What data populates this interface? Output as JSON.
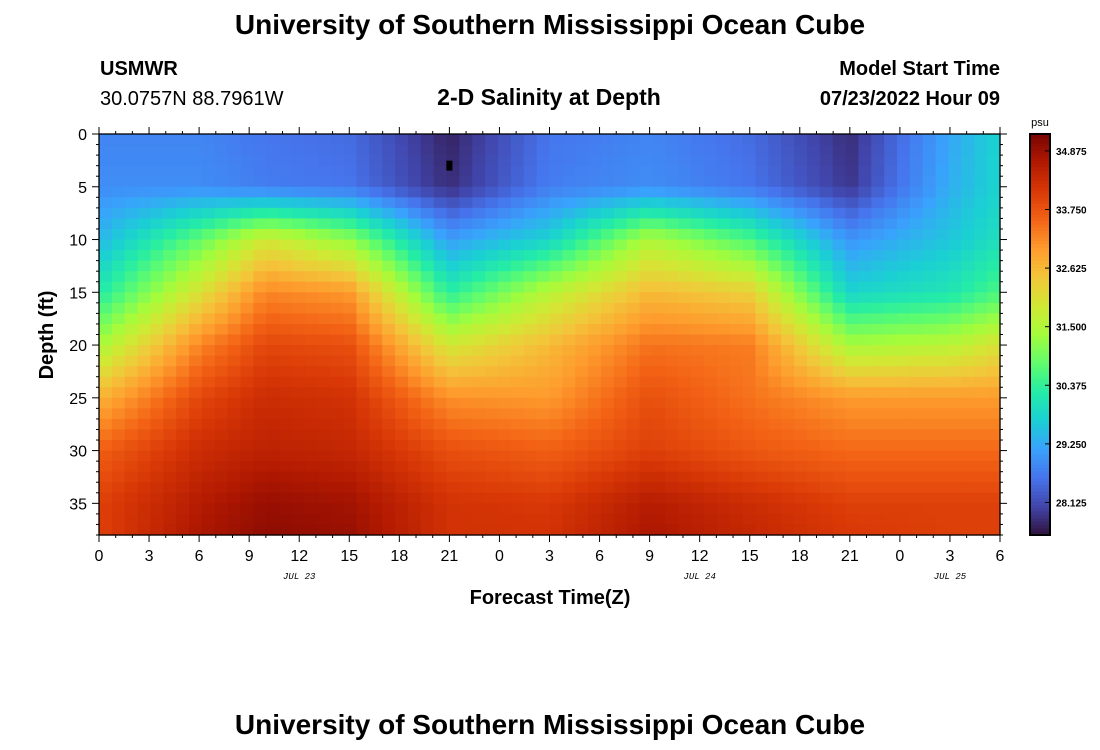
{
  "header": {
    "title": "University of Southern Mississippi Ocean Cube",
    "station": "USMWR",
    "coords": "30.0757N  88.7961W",
    "subtitle": "2-D Salinity at Depth",
    "model_label": "Model Start Time",
    "model_time": "07/23/2022 Hour 09"
  },
  "footer": {
    "title": "University of Southern Mississippi Ocean Cube"
  },
  "colors": {
    "background": "#ffffff",
    "marker": "#000000",
    "colormap": [
      "#30123b",
      "#4145ab",
      "#4675ed",
      "#39a2fc",
      "#1bcfd4",
      "#24eca6",
      "#61fc6c",
      "#a4fc3b",
      "#d1e834",
      "#f3c63a",
      "#fe9b2d",
      "#f36315",
      "#d93806",
      "#b11901",
      "#7a0403"
    ]
  },
  "chart_data": {
    "type": "heatmap",
    "variable": "Salinity",
    "units": "psu",
    "xlabel": "Forecast Time(Z)",
    "ylabel": "Depth (ft)",
    "x_hours_range": [
      0,
      54
    ],
    "x_tick_labels": [
      "0",
      "3",
      "6",
      "9",
      "12",
      "15",
      "18",
      "21",
      "0",
      "3",
      "6",
      "9",
      "12",
      "15",
      "18",
      "21",
      "0",
      "3",
      "6"
    ],
    "date_labels": [
      {
        "label": "JUL 23",
        "hour": 12
      },
      {
        "label": "JUL 24",
        "hour": 36
      },
      {
        "label": "JUL 25",
        "hour": 51
      }
    ],
    "ylim": [
      0,
      38
    ],
    "y_ticks": [
      0,
      5,
      10,
      15,
      20,
      25,
      30,
      35
    ],
    "color_range": [
      27.5,
      35.2
    ],
    "colorbar_ticks": [
      "34.875",
      "33.750",
      "32.625",
      "31.500",
      "30.375",
      "29.250",
      "28.125"
    ],
    "colorbar_tick_values": [
      34.875,
      33.75,
      32.625,
      31.5,
      30.375,
      29.25,
      28.125
    ],
    "grid_cells": {
      "columns": 70,
      "rows": 38
    },
    "control_points": {
      "hours": [
        0,
        6,
        10,
        15,
        21,
        27,
        33,
        39,
        45,
        51,
        54
      ],
      "depths": [
        0,
        5,
        10,
        15,
        20,
        25,
        30,
        35,
        38
      ],
      "salinity": [
        [
          28.8,
          28.8,
          28.6,
          28.5,
          27.7,
          28.6,
          28.8,
          28.5,
          27.8,
          29.2,
          29.8
        ],
        [
          28.9,
          28.9,
          28.7,
          28.6,
          27.8,
          28.7,
          28.9,
          28.6,
          27.9,
          29.3,
          29.8
        ],
        [
          29.4,
          30.8,
          31.9,
          31.2,
          29.1,
          29.8,
          31.5,
          30.6,
          29.0,
          29.6,
          30.0
        ],
        [
          30.2,
          32.0,
          33.2,
          33.0,
          30.3,
          31.6,
          32.6,
          32.3,
          29.8,
          30.1,
          30.6
        ],
        [
          31.4,
          33.2,
          33.9,
          33.8,
          31.9,
          32.6,
          33.4,
          33.3,
          31.4,
          31.6,
          32.0
        ],
        [
          32.7,
          33.9,
          34.3,
          34.2,
          33.1,
          33.0,
          33.8,
          33.4,
          33.0,
          33.0,
          33.0
        ],
        [
          33.6,
          34.3,
          34.5,
          34.4,
          33.8,
          33.6,
          34.0,
          33.7,
          33.5,
          33.5,
          33.5
        ],
        [
          34.0,
          34.6,
          34.9,
          34.8,
          34.2,
          34.1,
          34.6,
          34.3,
          34.0,
          34.0,
          34.0
        ],
        [
          34.0,
          34.7,
          35.0,
          34.9,
          34.2,
          34.2,
          34.7,
          34.4,
          34.1,
          34.0,
          34.0
        ]
      ]
    },
    "marker": {
      "hour": 21,
      "depth": 3
    }
  }
}
